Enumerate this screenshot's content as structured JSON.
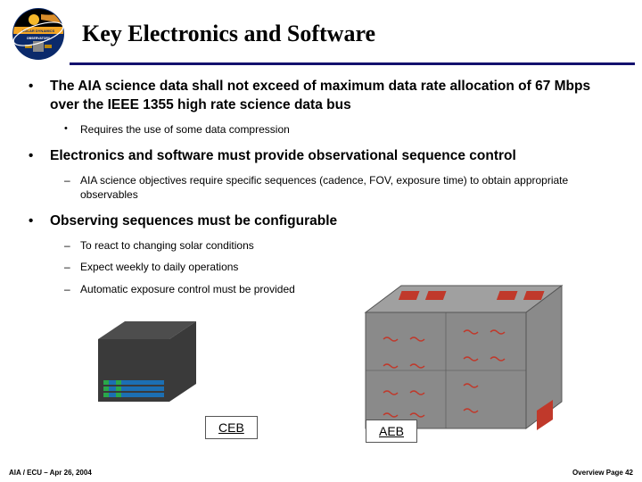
{
  "header": {
    "title": "Key Electronics and Software",
    "rule_color": "#13116e"
  },
  "bullets": [
    {
      "text": "The AIA science data shall not exceed of maximum data rate allocation of 67 Mbps over the IEEE 1355 high rate science data bus",
      "sub_style": "bullet",
      "sub": [
        "Requires the use of some data compression"
      ]
    },
    {
      "text": "Electronics and software must provide observational sequence control",
      "sub_style": "dash",
      "sub": [
        "AIA science objectives require specific sequences (cadence, FOV, exposure time) to obtain appropriate observables"
      ]
    },
    {
      "text": "Observing sequences must be configurable",
      "sub_style": "dash",
      "sub": [
        "To react to changing solar conditions",
        "Expect weekly to daily operations",
        "Automatic exposure control must be provided"
      ]
    }
  ],
  "figures": {
    "ceb": {
      "caption": "CEB",
      "body_color": "#3a3a3a",
      "top_color": "#4d4d4d",
      "slot_color": "#1c6fb3",
      "slot_accent": "#2aa84a"
    },
    "aeb": {
      "caption": "AEB",
      "body_color": "#8a8a8a",
      "top_color": "#a0a0a0",
      "port_color": "#c0392b",
      "edge_color": "#555"
    }
  },
  "footer": {
    "left": "AIA / ECU – Apr 26, 2004",
    "right": "Overview Page 42"
  }
}
